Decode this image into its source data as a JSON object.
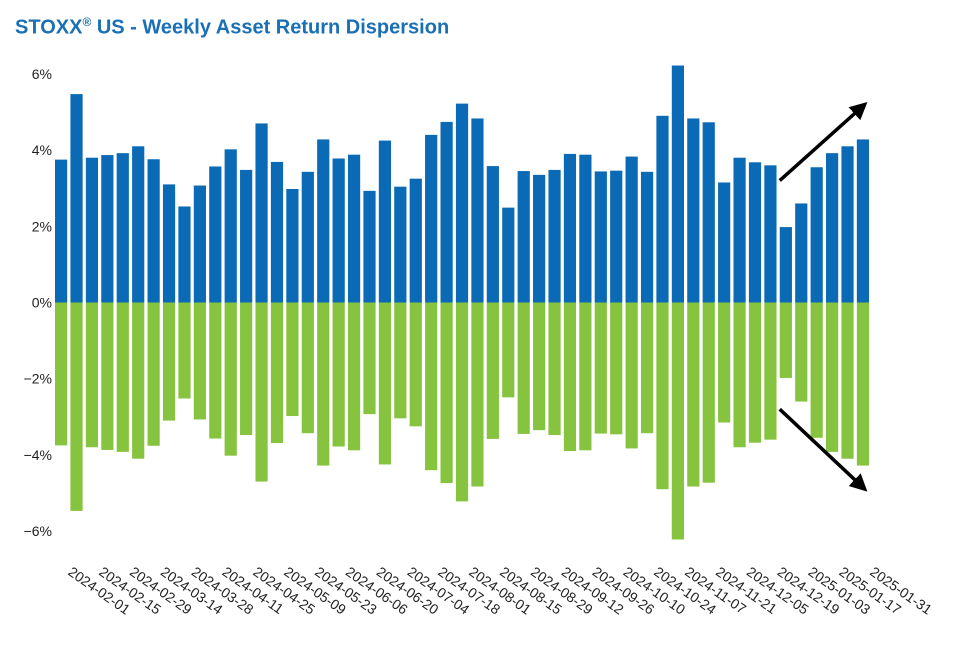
{
  "title": {
    "prefix": "STOXX",
    "reg_mark": "®",
    "suffix": " US - Weekly Asset Return Dispersion"
  },
  "colors": {
    "title": "#1a6fb5",
    "positive": "#0a6ab6",
    "negative": "#86c440",
    "arrow": "#000000"
  },
  "chart_data": {
    "type": "bar",
    "title": "STOXX® US - Weekly Asset Return Dispersion",
    "xlabel": "",
    "ylabel": "",
    "ylim": [
      -7,
      6.5
    ],
    "yticks": [
      6,
      4,
      2,
      0,
      -2,
      -4,
      -6
    ],
    "ytick_labels": [
      "6%",
      "4%",
      "2%",
      "0%",
      "−2%",
      "−4%",
      "−6%"
    ],
    "x_tick_labels": [
      "2024-02-01",
      "2024-02-15",
      "2024-02-29",
      "2024-03-14",
      "2024-03-28",
      "2024-04-11",
      "2024-04-25",
      "2024-05-09",
      "2024-05-23",
      "2024-06-06",
      "2024-06-20",
      "2024-07-04",
      "2024-07-18",
      "2024-08-01",
      "2024-08-15",
      "2024-08-29",
      "2024-09-12",
      "2024-09-26",
      "2024-10-10",
      "2024-10-24",
      "2024-11-07",
      "2024-11-21",
      "2024-12-05",
      "2024-12-19",
      "2025-01-03",
      "2025-01-17",
      "2025-01-31"
    ],
    "series": [
      {
        "values": [
          3.75,
          5.47,
          3.8,
          3.87,
          3.92,
          4.1,
          3.76,
          3.1,
          2.52,
          3.07,
          3.57,
          4.02,
          3.48,
          4.7,
          3.69,
          2.98,
          3.43,
          4.28,
          3.78,
          3.88,
          2.93,
          4.25,
          3.04,
          3.25,
          4.4,
          4.74,
          5.22,
          4.83,
          3.58,
          2.49,
          3.45,
          3.35,
          3.48,
          3.9,
          3.88,
          3.44,
          3.46,
          3.83,
          3.43,
          4.9,
          6.22,
          4.83,
          4.73,
          3.15,
          3.8,
          3.68,
          3.6,
          1.98,
          2.6,
          3.55,
          3.92,
          4.1,
          4.28
        ]
      },
      {
        "values": [
          -3.75,
          -5.47,
          -3.8,
          -3.87,
          -3.92,
          -4.1,
          -3.76,
          -3.1,
          -2.52,
          -3.07,
          -3.57,
          -4.02,
          -3.48,
          -4.7,
          -3.69,
          -2.98,
          -3.43,
          -4.28,
          -3.78,
          -3.88,
          -2.93,
          -4.25,
          -3.04,
          -3.25,
          -4.4,
          -4.74,
          -5.22,
          -4.83,
          -3.58,
          -2.49,
          -3.45,
          -3.35,
          -3.48,
          -3.9,
          -3.88,
          -3.44,
          -3.46,
          -3.83,
          -3.43,
          -4.9,
          -6.22,
          -4.83,
          -4.73,
          -3.15,
          -3.8,
          -3.68,
          -3.6,
          -1.98,
          -2.6,
          -3.55,
          -3.92,
          -4.1,
          -4.28
        ]
      }
    ],
    "grid": false,
    "legend": "none",
    "annotations": [
      {
        "type": "arrow",
        "direction": "up-right",
        "from_bar": 47,
        "to_bar": 52,
        "from_y": 3.2,
        "to_y": 5.2
      },
      {
        "type": "arrow",
        "direction": "down-right",
        "from_bar": 47,
        "to_bar": 52,
        "from_y": -2.8,
        "to_y": -4.9
      }
    ]
  }
}
